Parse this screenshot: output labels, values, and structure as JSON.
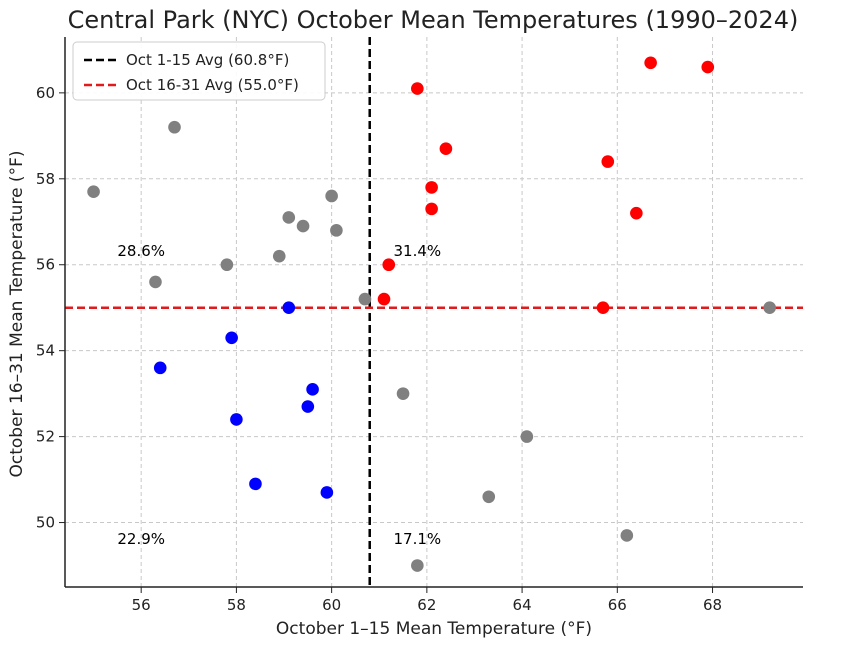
{
  "chart_data": {
    "type": "scatter",
    "title": "Central Park (NYC) October Mean Temperatures (1990–2024)",
    "xlabel": "October 1–15 Mean Temperature (°F)",
    "ylabel": "October 16–31 Mean Temperature (°F)",
    "xlim": [
      54.4,
      69.9
    ],
    "ylim": [
      48.5,
      61.3
    ],
    "xticks": [
      56,
      58,
      60,
      62,
      64,
      66,
      68
    ],
    "yticks": [
      50,
      52,
      54,
      56,
      58,
      60
    ],
    "grid": true,
    "colors": {
      "gray": "#808080",
      "red": "#ff0000",
      "blue": "#0000ff",
      "vline": "#000000",
      "hline": "#e31a1c"
    },
    "reference_lines": [
      {
        "orientation": "vertical",
        "value": 60.8,
        "label": "Oct 1-15 Avg (60.8°F)",
        "color": "#000000",
        "style": "dashed"
      },
      {
        "orientation": "horizontal",
        "value": 55.0,
        "label": "Oct 16-31 Avg (55.0°F)",
        "color": "#e31a1c",
        "style": "dashed"
      }
    ],
    "legend_position": "top-left",
    "quadrant_annotations": [
      {
        "text": "28.6%",
        "x": 55.5,
        "y": 56.2
      },
      {
        "text": "31.4%",
        "x": 61.3,
        "y": 56.2
      },
      {
        "text": "22.9%",
        "x": 55.5,
        "y": 49.5
      },
      {
        "text": "17.1%",
        "x": 61.3,
        "y": 49.5
      }
    ],
    "series": [
      {
        "name": "gray",
        "color": "#808080",
        "points": [
          {
            "x": 55.0,
            "y": 57.7
          },
          {
            "x": 56.7,
            "y": 59.2
          },
          {
            "x": 56.3,
            "y": 55.6
          },
          {
            "x": 57.8,
            "y": 56.0
          },
          {
            "x": 58.9,
            "y": 56.2
          },
          {
            "x": 59.1,
            "y": 57.1
          },
          {
            "x": 59.4,
            "y": 56.9
          },
          {
            "x": 60.0,
            "y": 57.6
          },
          {
            "x": 60.1,
            "y": 56.8
          },
          {
            "x": 60.7,
            "y": 55.2
          },
          {
            "x": 61.5,
            "y": 53.0
          },
          {
            "x": 64.1,
            "y": 52.0
          },
          {
            "x": 63.3,
            "y": 50.6
          },
          {
            "x": 61.8,
            "y": 49.0
          },
          {
            "x": 66.2,
            "y": 49.7
          },
          {
            "x": 69.2,
            "y": 55.0
          }
        ]
      },
      {
        "name": "red",
        "color": "#ff0000",
        "points": [
          {
            "x": 61.8,
            "y": 60.1
          },
          {
            "x": 62.4,
            "y": 58.7
          },
          {
            "x": 62.1,
            "y": 57.8
          },
          {
            "x": 62.1,
            "y": 57.3
          },
          {
            "x": 61.2,
            "y": 56.0
          },
          {
            "x": 61.1,
            "y": 55.2
          },
          {
            "x": 65.7,
            "y": 55.0
          },
          {
            "x": 65.8,
            "y": 58.4
          },
          {
            "x": 66.4,
            "y": 57.2
          },
          {
            "x": 66.7,
            "y": 60.7
          },
          {
            "x": 67.9,
            "y": 60.6
          }
        ]
      },
      {
        "name": "blue",
        "color": "#0000ff",
        "points": [
          {
            "x": 56.4,
            "y": 53.6
          },
          {
            "x": 57.9,
            "y": 54.3
          },
          {
            "x": 59.1,
            "y": 55.0
          },
          {
            "x": 58.0,
            "y": 52.4
          },
          {
            "x": 59.5,
            "y": 52.7
          },
          {
            "x": 59.6,
            "y": 53.1
          },
          {
            "x": 58.4,
            "y": 50.9
          },
          {
            "x": 59.9,
            "y": 50.7
          }
        ]
      }
    ]
  }
}
